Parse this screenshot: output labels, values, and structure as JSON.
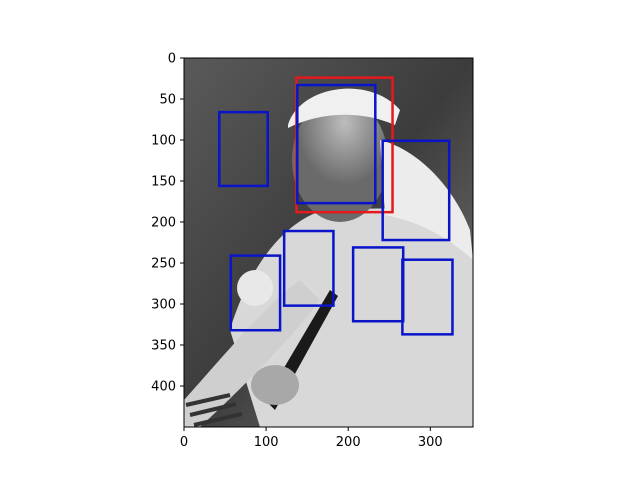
{
  "chart_data": {
    "type": "image",
    "image_description": "Grayscale photo with axes in pixel units",
    "xlim": [
      0,
      352
    ],
    "ylim": [
      450,
      0
    ],
    "x_ticks": [
      0,
      100,
      200,
      300
    ],
    "y_ticks": [
      0,
      50,
      100,
      150,
      200,
      250,
      300,
      350,
      400
    ],
    "grid": false,
    "boxes": [
      {
        "color": "#e41a1c",
        "x0": 137,
        "y0": 24,
        "x1": 254,
        "y1": 188
      },
      {
        "color": "#0a14c8",
        "x0": 138,
        "y0": 33,
        "x1": 233,
        "y1": 177
      },
      {
        "color": "#0a14c8",
        "x0": 43,
        "y0": 66,
        "x1": 102,
        "y1": 156
      },
      {
        "color": "#0a14c8",
        "x0": 242,
        "y0": 101,
        "x1": 323,
        "y1": 222
      },
      {
        "color": "#0a14c8",
        "x0": 122,
        "y0": 211,
        "x1": 182,
        "y1": 302
      },
      {
        "color": "#0a14c8",
        "x0": 57,
        "y0": 241,
        "x1": 117,
        "y1": 332
      },
      {
        "color": "#0a14c8",
        "x0": 206,
        "y0": 231,
        "x1": 267,
        "y1": 321
      },
      {
        "color": "#0a14c8",
        "x0": 266,
        "y0": 246,
        "x1": 327,
        "y1": 337
      }
    ]
  }
}
